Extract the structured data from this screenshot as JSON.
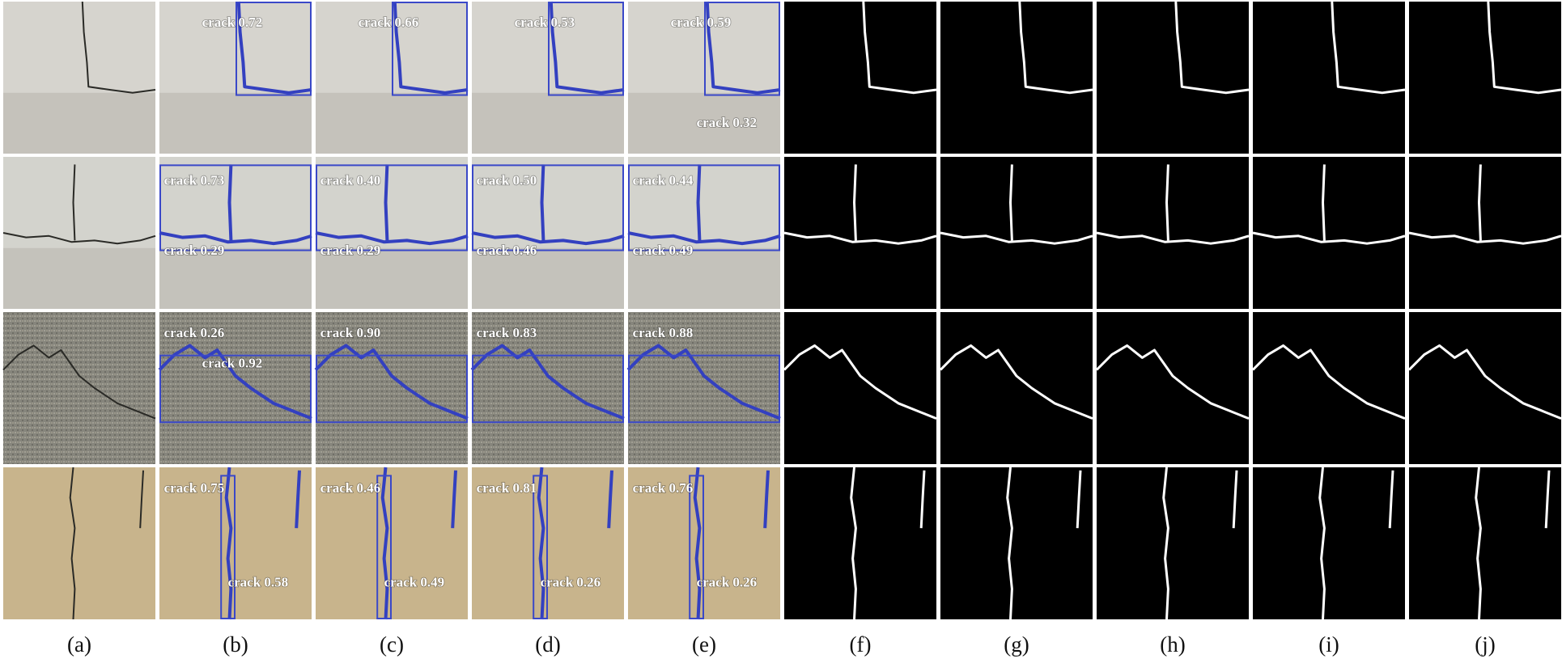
{
  "columns": [
    "(a)",
    "(b)",
    "(c)",
    "(d)",
    "(e)",
    "(f)",
    "(g)",
    "(h)",
    "(i)",
    "(j)"
  ],
  "rows": [
    [
      [],
      [
        "crack 0.72"
      ],
      [
        "crack 0.66"
      ],
      [
        "crack 0.53"
      ],
      [
        "crack 0.59",
        "crack 0.32"
      ],
      [],
      [],
      [],
      [],
      []
    ],
    [
      [],
      [
        "crack 0.73",
        "crack 0.29"
      ],
      [
        "crack 0.40",
        "crack 0.29"
      ],
      [
        "crack 0.50",
        "crack 0.46"
      ],
      [
        "crack 0.44",
        "crack 0.49"
      ],
      [],
      [],
      [],
      [],
      []
    ],
    [
      [],
      [
        "crack 0.26",
        "crack 0.92"
      ],
      [
        "crack 0.90"
      ],
      [
        "crack 0.83"
      ],
      [
        "crack 0.88"
      ],
      [],
      [],
      [],
      [],
      []
    ],
    [
      [],
      [
        "crack 0.75",
        "crack 0.58"
      ],
      [
        "crack 0.46",
        "crack 0.49"
      ],
      [
        "crack 0.81",
        "crack 0.26"
      ],
      [
        "crack 0.76",
        "crack 0.26"
      ],
      [],
      [],
      [],
      [],
      []
    ]
  ]
}
